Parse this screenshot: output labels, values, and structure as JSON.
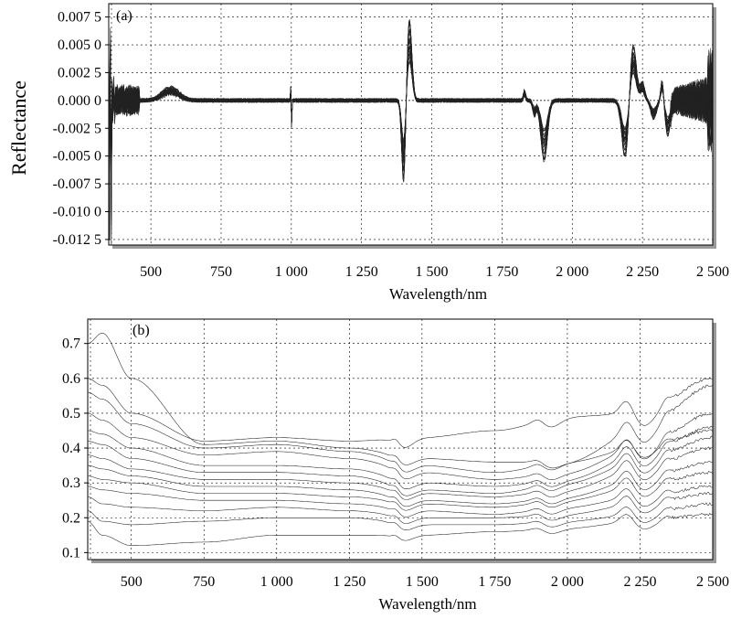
{
  "chart_data": [
    {
      "panel_label": "(a)",
      "type": "line",
      "xlabel": "Wavelength/nm",
      "ylabel": "Reflectance",
      "xlim": [
        350,
        2500
      ],
      "ylim": [
        -0.013,
        0.0087
      ],
      "xticks": [
        500,
        750,
        1000,
        1250,
        1500,
        1750,
        2000,
        2250,
        2500
      ],
      "xtick_labels": [
        "500",
        "750",
        "1 000",
        "1 250",
        "1 500",
        "1 750",
        "2 000",
        "2 250",
        "2 500"
      ],
      "yticks": [
        0.0075,
        0.005,
        0.0025,
        0.0,
        -0.0025,
        -0.005,
        -0.0075,
        -0.01,
        -0.0125
      ],
      "ytick_labels": [
        "0.007 5",
        "0.005 0",
        "0.002 5",
        "0.000 0",
        "-0.002 5",
        "-0.005 0",
        "-0.007 5",
        "-0.010 0",
        "-0.012 5"
      ],
      "grid": true,
      "series_count": 30,
      "features": [
        {
          "x": 355,
          "y_max": 0.0075,
          "y_min": -0.0125
        },
        {
          "x": 570,
          "y_max": 0.0015
        },
        {
          "x": 1000,
          "y_max": 0.0012,
          "y_min": -0.0025
        },
        {
          "x": 1400,
          "y_min": -0.007
        },
        {
          "x": 1420,
          "y_max": 0.0065
        },
        {
          "x": 1830,
          "y_max": 0.001
        },
        {
          "x": 1900,
          "y_min": -0.0048
        },
        {
          "x": 2190,
          "y_min": -0.005
        },
        {
          "x": 2215,
          "y_max": 0.005
        },
        {
          "x": 2320,
          "y_max": 0.0018,
          "y_min": -0.0028
        }
      ]
    },
    {
      "panel_label": "(b)",
      "type": "line",
      "xlabel": "Wavelength/nm",
      "ylabel": "",
      "xlim": [
        350,
        2500
      ],
      "ylim": [
        0.08,
        0.77
      ],
      "xticks": [
        500,
        750,
        1000,
        1250,
        1500,
        1750,
        2000,
        2250,
        2500
      ],
      "xtick_labels": [
        "500",
        "750",
        "1 000",
        "1 250",
        "1 500",
        "1 750",
        "2 000",
        "2 250",
        "2 500"
      ],
      "yticks": [
        0.1,
        0.2,
        0.3,
        0.4,
        0.5,
        0.6,
        0.7
      ],
      "ytick_labels": [
        "0.1",
        "0.2",
        "0.3",
        "0.4",
        "0.5",
        "0.6",
        "0.7"
      ],
      "grid": true,
      "series": [
        {
          "wavelength": [
            350,
            400,
            500,
            750,
            1000,
            1250,
            1500,
            1750,
            2000,
            2250,
            2500
          ],
          "reflectance": [
            0.7,
            0.73,
            0.6,
            0.41,
            0.42,
            0.4,
            0.37,
            0.36,
            0.36,
            0.4,
            0.45
          ]
        },
        {
          "wavelength": [
            350,
            400,
            500,
            750,
            1000,
            1250,
            1500,
            1750,
            2000,
            2250,
            2500
          ],
          "reflectance": [
            0.6,
            0.58,
            0.5,
            0.42,
            0.43,
            0.42,
            0.43,
            0.45,
            0.49,
            0.5,
            0.6
          ]
        },
        {
          "wavelength": [
            350,
            400,
            500,
            750,
            1000,
            1250,
            1500,
            1750,
            2000,
            2250,
            2500
          ],
          "reflectance": [
            0.56,
            0.54,
            0.47,
            0.4,
            0.41,
            0.39,
            0.35,
            0.33,
            0.36,
            0.45,
            0.58
          ]
        },
        {
          "wavelength": [
            350,
            400,
            500,
            750,
            1000,
            1250,
            1500,
            1750,
            2000,
            2250,
            2500
          ],
          "reflectance": [
            0.5,
            0.48,
            0.43,
            0.38,
            0.39,
            0.37,
            0.33,
            0.31,
            0.33,
            0.4,
            0.5
          ]
        },
        {
          "wavelength": [
            350,
            400,
            500,
            750,
            1000,
            1250,
            1500,
            1750,
            2000,
            2250,
            2500
          ],
          "reflectance": [
            0.45,
            0.44,
            0.4,
            0.35,
            0.35,
            0.34,
            0.3,
            0.29,
            0.31,
            0.38,
            0.46
          ]
        },
        {
          "wavelength": [
            350,
            400,
            500,
            750,
            1000,
            1250,
            1500,
            1750,
            2000,
            2250,
            2500
          ],
          "reflectance": [
            0.42,
            0.41,
            0.37,
            0.33,
            0.33,
            0.32,
            0.28,
            0.27,
            0.3,
            0.36,
            0.43
          ]
        },
        {
          "wavelength": [
            350,
            400,
            500,
            750,
            1000,
            1250,
            1500,
            1750,
            2000,
            2250,
            2500
          ],
          "reflectance": [
            0.38,
            0.37,
            0.34,
            0.31,
            0.31,
            0.3,
            0.27,
            0.26,
            0.28,
            0.34,
            0.4
          ]
        },
        {
          "wavelength": [
            350,
            400,
            500,
            750,
            1000,
            1250,
            1500,
            1750,
            2000,
            2250,
            2500
          ],
          "reflectance": [
            0.35,
            0.34,
            0.32,
            0.29,
            0.29,
            0.28,
            0.25,
            0.24,
            0.26,
            0.31,
            0.36
          ]
        },
        {
          "wavelength": [
            350,
            400,
            500,
            750,
            1000,
            1250,
            1500,
            1750,
            2000,
            2250,
            2500
          ],
          "reflectance": [
            0.32,
            0.31,
            0.3,
            0.27,
            0.27,
            0.26,
            0.24,
            0.23,
            0.25,
            0.29,
            0.33
          ]
        },
        {
          "wavelength": [
            350,
            400,
            500,
            750,
            1000,
            1250,
            1500,
            1750,
            2000,
            2250,
            2500
          ],
          "reflectance": [
            0.29,
            0.28,
            0.27,
            0.25,
            0.25,
            0.24,
            0.22,
            0.21,
            0.23,
            0.26,
            0.29
          ]
        },
        {
          "wavelength": [
            350,
            400,
            500,
            750,
            1000,
            1250,
            1500,
            1750,
            2000,
            2250,
            2500
          ],
          "reflectance": [
            0.26,
            0.24,
            0.23,
            0.22,
            0.23,
            0.22,
            0.2,
            0.2,
            0.21,
            0.24,
            0.27
          ]
        },
        {
          "wavelength": [
            350,
            400,
            500,
            750,
            1000,
            1250,
            1500,
            1750,
            2000,
            2250,
            2500
          ],
          "reflectance": [
            0.22,
            0.19,
            0.18,
            0.19,
            0.2,
            0.2,
            0.18,
            0.18,
            0.19,
            0.21,
            0.24
          ]
        },
        {
          "wavelength": [
            350,
            400,
            500,
            750,
            1000,
            1250,
            1500,
            1750,
            2000,
            2250,
            2500
          ],
          "reflectance": [
            0.19,
            0.15,
            0.12,
            0.13,
            0.15,
            0.15,
            0.15,
            0.16,
            0.17,
            0.19,
            0.21
          ]
        }
      ]
    }
  ]
}
